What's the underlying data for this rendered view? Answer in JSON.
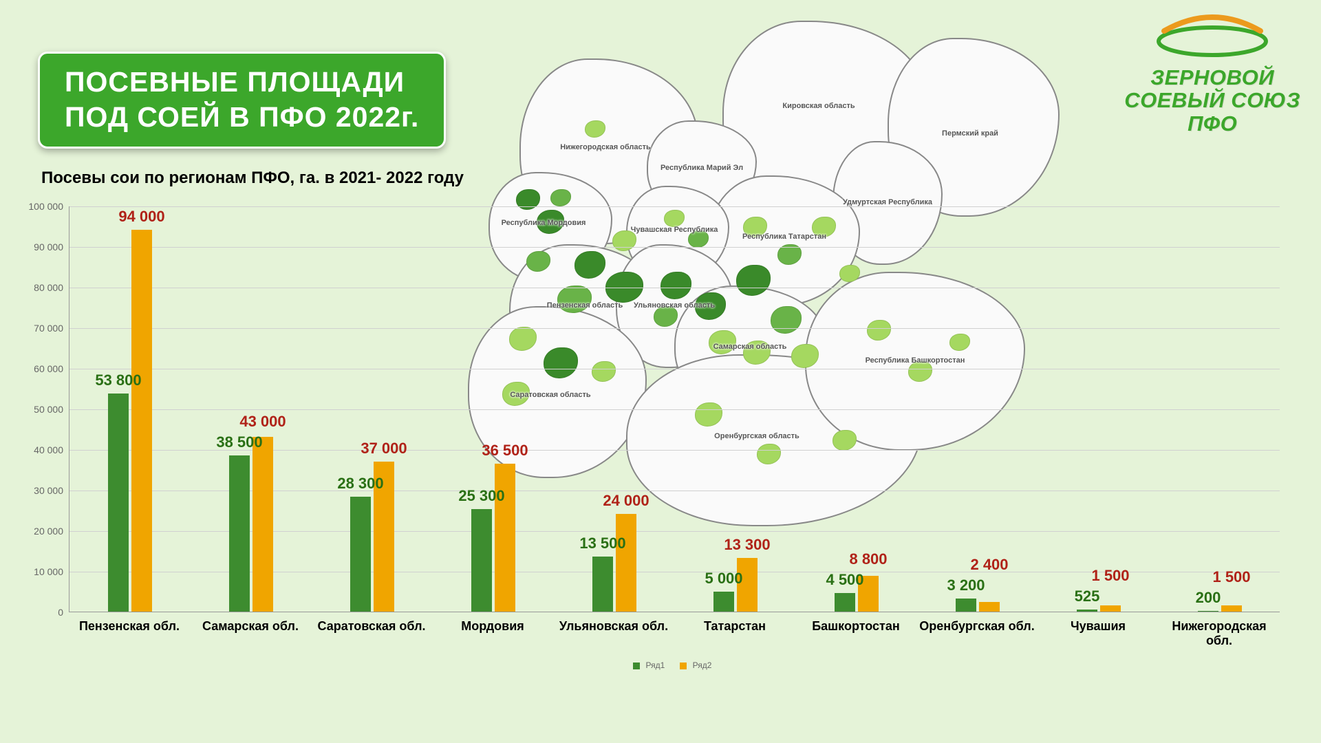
{
  "title_line1": "ПОСЕВНЫЕ ПЛОЩАДИ",
  "title_line2": "ПОД СОЕЙ В ПФО 2022г.",
  "subtitle": "Посевы сои по регионам ПФО, га. в 2021- 2022 году",
  "logo": {
    "line1": "ЗЕРНОВОЙ",
    "line2": "СОЕВЫЙ СОЮЗ",
    "line3": "ПФО",
    "ring_color_top": "#ec9a1d",
    "ring_color_line": "#3ca72b"
  },
  "chart": {
    "type": "bar",
    "ymin": 0,
    "ymax": 100000,
    "ytick_step": 10000,
    "grid_color": "#d0d0d0",
    "series": [
      {
        "name": "Ряд1",
        "color": "#3d8c2f",
        "label_color": "#2a7015"
      },
      {
        "name": "Ряд2",
        "color": "#f0a500",
        "label_color": "#b02218"
      }
    ],
    "categories": [
      {
        "name": "Пензенская обл.",
        "v1": 53800,
        "v2": 94000,
        "l1": "53 800",
        "l2": "94 000"
      },
      {
        "name": "Самарская обл.",
        "v1": 38500,
        "v2": 43000,
        "l1": "38 500",
        "l2": "43 000"
      },
      {
        "name": "Саратовская обл.",
        "v1": 28300,
        "v2": 37000,
        "l1": "28 300",
        "l2": "37 000"
      },
      {
        "name": "Мордовия",
        "v1": 25300,
        "v2": 36500,
        "l1": "25 300",
        "l2": "36 500"
      },
      {
        "name": "Ульяновская обл.",
        "v1": 13500,
        "v2": 24000,
        "l1": "13 500",
        "l2": "24 000"
      },
      {
        "name": "Татарстан",
        "v1": 5000,
        "v2": 13300,
        "l1": "5 000",
        "l2": "13 300"
      },
      {
        "name": "Башкортостан",
        "v1": 4500,
        "v2": 8800,
        "l1": "4 500",
        "l2": "8 800"
      },
      {
        "name": "Оренбургская обл.",
        "v1": 3200,
        "v2": 2400,
        "l1": "3 200",
        "l2": "2 400"
      },
      {
        "name": "Чувашия",
        "v1": 525,
        "v2": 1500,
        "l1": "525",
        "l2": "1 500"
      },
      {
        "name": "Нижегородская обл.",
        "v1": 200,
        "v2": 1500,
        "l1": "200",
        "l2": "1 500"
      }
    ],
    "y_ticks": [
      {
        "v": 0,
        "label": "0"
      },
      {
        "v": 10000,
        "label": "10 000"
      },
      {
        "v": 20000,
        "label": "20 000"
      },
      {
        "v": 30000,
        "label": "30 000"
      },
      {
        "v": 40000,
        "label": "40 000"
      },
      {
        "v": 50000,
        "label": "50 000"
      },
      {
        "v": 60000,
        "label": "60 000"
      },
      {
        "v": 70000,
        "label": "70 000"
      },
      {
        "v": 80000,
        "label": "80 000"
      },
      {
        "v": 90000,
        "label": "90 000"
      },
      {
        "v": 100000,
        "label": "100 000"
      }
    ]
  },
  "map_labels": [
    "Кировская область",
    "Пермский край",
    "Удмуртская Республика",
    "Нижегородская область",
    "Республика Марий Эл",
    "Республика Татарстан",
    "Чувашская Республика",
    "Республика Мордовия",
    "Пензенская область",
    "Ульяновская область",
    "Самарская область",
    "Саратовская область",
    "Оренбургская область",
    "Республика Башкортостан"
  ]
}
